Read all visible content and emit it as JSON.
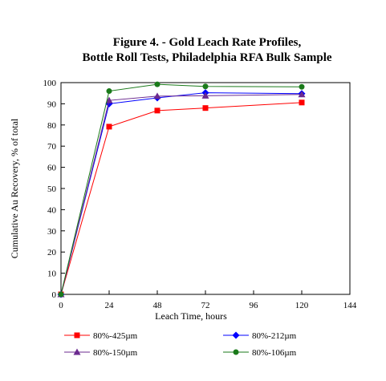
{
  "chart_data": {
    "type": "line",
    "title": [
      "Figure 4. - Gold Leach Rate Profiles,",
      "Bottle Roll Tests, Philadelphia RFA Bulk Sample"
    ],
    "xlabel": "Leach Time, hours",
    "ylabel": "Cumulative Au Recovery, % of total",
    "xlim": [
      0,
      144
    ],
    "ylim": [
      0,
      100
    ],
    "xticks": [
      0,
      24,
      48,
      72,
      96,
      120,
      144
    ],
    "yticks": [
      0,
      10,
      20,
      30,
      40,
      50,
      60,
      70,
      80,
      90,
      100
    ],
    "grid": false,
    "legend_position": "bottom",
    "series": [
      {
        "name": "80%-425µm",
        "color": "#ff0000",
        "marker": "square",
        "x": [
          0,
          24,
          48,
          72,
          120
        ],
        "y": [
          0,
          79.2,
          86.8,
          88.0,
          90.6
        ]
      },
      {
        "name": "80%-212µm",
        "color": "#0000ff",
        "marker": "diamond",
        "x": [
          0,
          24,
          48,
          72,
          120
        ],
        "y": [
          0,
          90.0,
          92.8,
          95.2,
          94.8
        ]
      },
      {
        "name": "80%-150µm",
        "color": "#6b2a8f",
        "marker": "triangle",
        "x": [
          0,
          24,
          48,
          72,
          120
        ],
        "y": [
          0,
          91.6,
          93.6,
          93.8,
          94.4
        ]
      },
      {
        "name": "80%-106µm",
        "color": "#1a7a1a",
        "marker": "circle",
        "x": [
          0,
          24,
          48,
          72,
          120
        ],
        "y": [
          0,
          96.0,
          99.2,
          98.2,
          98.0
        ]
      }
    ]
  }
}
